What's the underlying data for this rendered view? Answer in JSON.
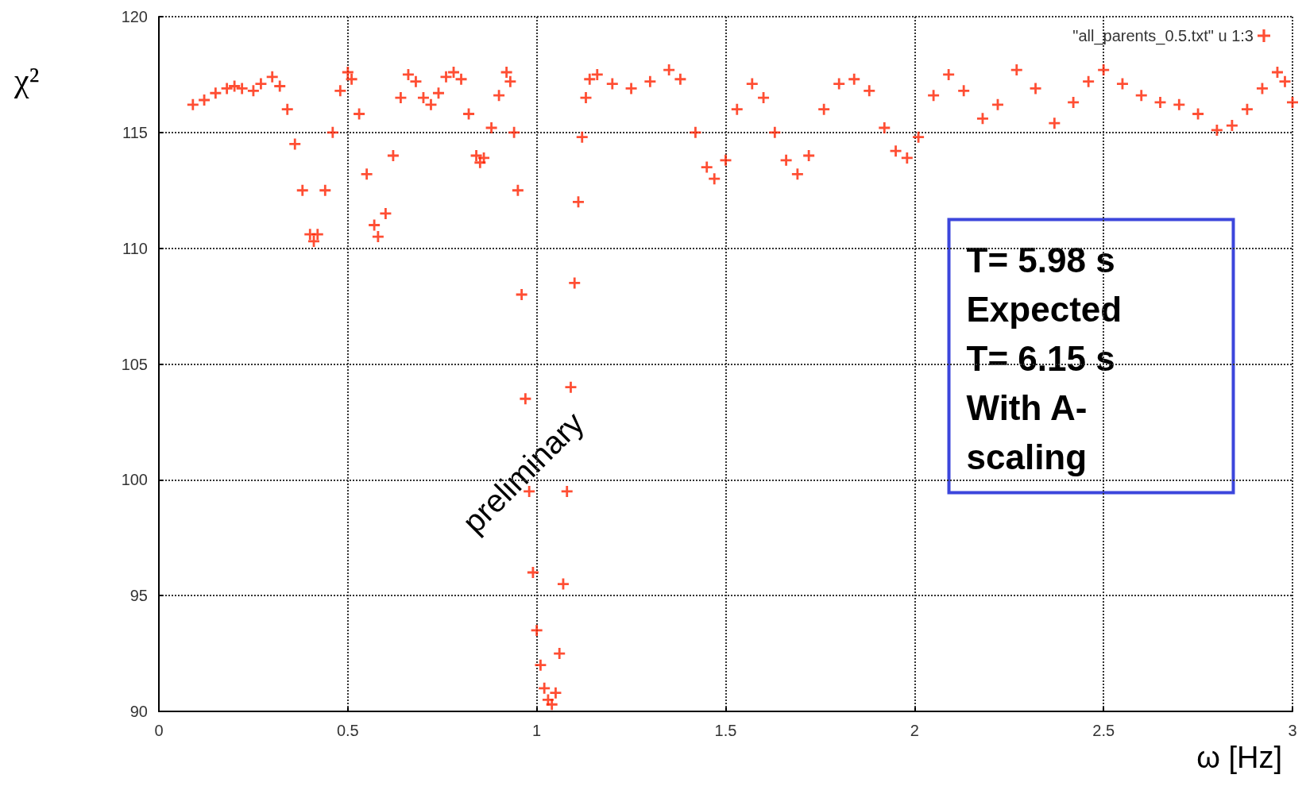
{
  "chart_data": {
    "type": "scatter",
    "xlabel": "ω [Hz]",
    "ylabel": "χ²",
    "marker": "cross",
    "grid": true,
    "legend": "top right",
    "xlim": [
      0,
      3
    ],
    "xticks": [
      0,
      0.5,
      1,
      1.5,
      2,
      2.5,
      3
    ],
    "ylim": [
      90,
      120
    ],
    "yticks": [
      90,
      95,
      100,
      105,
      110,
      115,
      120
    ],
    "annotations": [
      "T= 5.98 s\nExpected\nT= 6.15 s\nWith A-\nscaling",
      "preliminary"
    ],
    "series": [
      {
        "name": "\"all_parents_0.5.txt\" u 1:3",
        "color": "#ff2200",
        "x": [
          0.09,
          0.12,
          0.15,
          0.18,
          0.2,
          0.22,
          0.25,
          0.27,
          0.3,
          0.32,
          0.34,
          0.36,
          0.38,
          0.4,
          0.41,
          0.42,
          0.44,
          0.46,
          0.48,
          0.5,
          0.51,
          0.53,
          0.55,
          0.57,
          0.58,
          0.6,
          0.62,
          0.64,
          0.66,
          0.68,
          0.7,
          0.72,
          0.74,
          0.76,
          0.78,
          0.8,
          0.82,
          0.84,
          0.85,
          0.86,
          0.88,
          0.9,
          0.92,
          0.93,
          0.94,
          0.95,
          0.96,
          0.97,
          0.98,
          0.99,
          1.0,
          1.01,
          1.02,
          1.03,
          1.04,
          1.05,
          1.06,
          1.07,
          1.08,
          1.09,
          1.1,
          1.11,
          1.12,
          1.13,
          1.14,
          1.16,
          1.2,
          1.25,
          1.3,
          1.35,
          1.38,
          1.42,
          1.45,
          1.47,
          1.5,
          1.53,
          1.57,
          1.6,
          1.63,
          1.66,
          1.69,
          1.72,
          1.76,
          1.8,
          1.84,
          1.88,
          1.92,
          1.95,
          1.98,
          2.01,
          2.05,
          2.09,
          2.13,
          2.18,
          2.22,
          2.27,
          2.32,
          2.37,
          2.42,
          2.46,
          2.5,
          2.55,
          2.6,
          2.65,
          2.7,
          2.75,
          2.8,
          2.84,
          2.88,
          2.92,
          2.96,
          2.98,
          3.0
        ],
        "values": [
          116.2,
          116.4,
          116.7,
          116.9,
          117.0,
          116.9,
          116.8,
          117.1,
          117.4,
          117.0,
          116.0,
          114.5,
          112.5,
          110.6,
          110.3,
          110.6,
          112.5,
          115.0,
          116.8,
          117.6,
          117.3,
          115.8,
          113.2,
          111.0,
          110.5,
          111.5,
          114.0,
          116.5,
          117.5,
          117.2,
          116.5,
          116.2,
          116.7,
          117.4,
          117.6,
          117.3,
          115.8,
          114.0,
          113.7,
          113.9,
          115.2,
          116.6,
          117.6,
          117.2,
          115.0,
          112.5,
          108.0,
          103.5,
          99.5,
          96.0,
          93.5,
          92.0,
          91.0,
          90.5,
          90.3,
          90.8,
          92.5,
          95.5,
          99.5,
          104.0,
          108.5,
          112.0,
          114.8,
          116.5,
          117.3,
          117.5,
          117.1,
          116.9,
          117.2,
          117.7,
          117.3,
          115.0,
          113.5,
          113.0,
          113.8,
          116.0,
          117.1,
          116.5,
          115.0,
          113.8,
          113.2,
          114.0,
          116.0,
          117.1,
          117.3,
          116.8,
          115.2,
          114.2,
          113.9,
          114.8,
          116.6,
          117.5,
          116.8,
          115.6,
          116.2,
          117.7,
          116.9,
          115.4,
          116.3,
          117.2,
          117.7,
          117.1,
          116.6,
          116.3,
          116.2,
          115.8,
          115.1,
          115.3,
          116.0,
          116.9,
          117.6,
          117.2,
          116.3
        ]
      }
    ]
  }
}
